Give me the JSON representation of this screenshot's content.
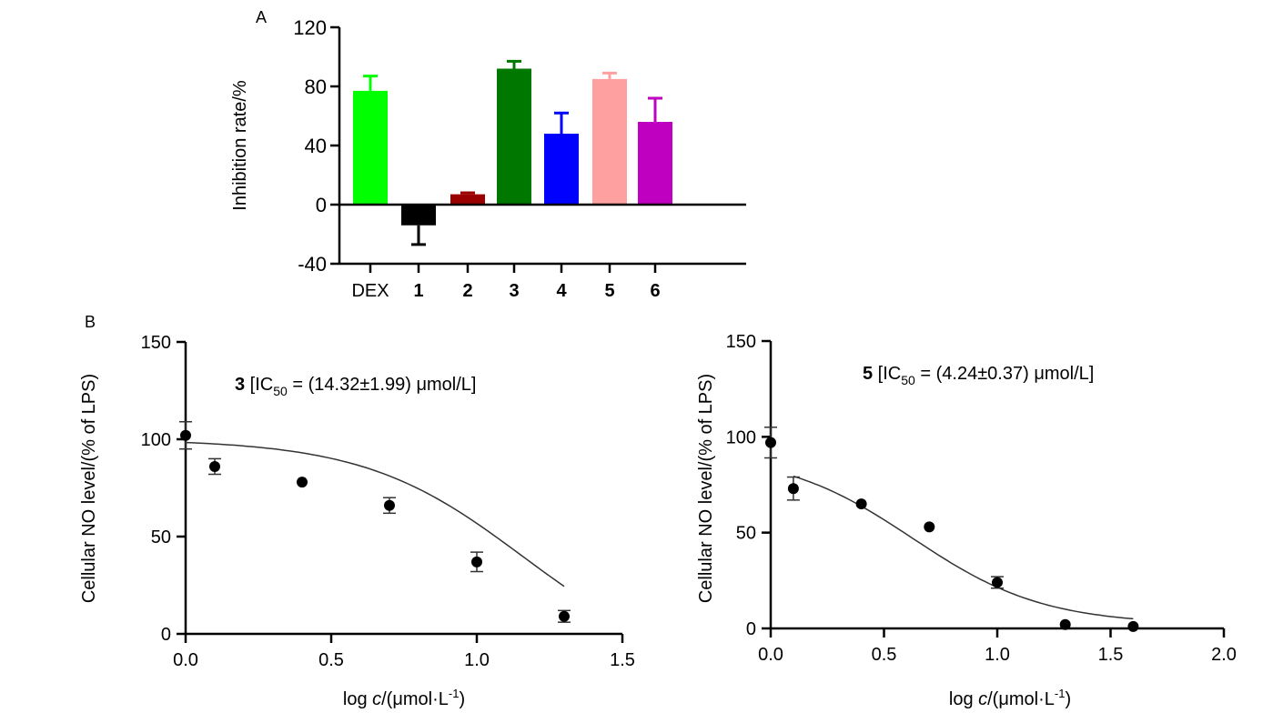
{
  "chart_data": [
    {
      "panel": "A",
      "type": "bar",
      "title": "",
      "xlabel": "",
      "ylabel": "Inhibition rate/%",
      "ylim": [
        -40,
        120
      ],
      "yticks": [
        "120",
        "80",
        "40",
        "0",
        "-40"
      ],
      "ytick_values": [
        120,
        80,
        40,
        0,
        -40
      ],
      "categories": [
        "DEX",
        "1",
        "2",
        "3",
        "4",
        "5",
        "6"
      ],
      "values": [
        77,
        -14,
        7,
        92,
        48,
        85,
        56
      ],
      "errors": [
        10,
        13,
        1,
        5,
        14,
        4,
        16
      ],
      "colors": [
        "#00ff00",
        "#000000",
        "#9b0000",
        "#007800",
        "#0000ff",
        "#ffa0a0",
        "#c000c0"
      ]
    },
    {
      "panel": "B-left",
      "type": "scatter",
      "annotation": {
        "compound": "3",
        "text_pre": " [IC",
        "sub": "50",
        "text_post": " = (14.32±1.99) μmol/L]"
      },
      "xlabel": {
        "pre": "log ",
        "italic": "c",
        "mid": "/(μmol·L",
        "sup": "-1",
        "post": ")"
      },
      "ylabel": "Cellular NO level/(% of LPS)",
      "xlim": [
        0,
        1.5
      ],
      "ylim": [
        0,
        150
      ],
      "xticks": [
        "0.0",
        "0.5",
        "1.0",
        "1.5"
      ],
      "xtick_values": [
        0,
        0.5,
        1.0,
        1.5
      ],
      "yticks": [
        "0",
        "50",
        "100",
        "150"
      ],
      "ytick_values": [
        0,
        50,
        100,
        150
      ],
      "points": [
        {
          "x": 0.0,
          "y": 102,
          "err": 7
        },
        {
          "x": 0.1,
          "y": 86,
          "err": 4
        },
        {
          "x": 0.4,
          "y": 78,
          "err": 0
        },
        {
          "x": 0.7,
          "y": 66,
          "err": 4
        },
        {
          "x": 1.0,
          "y": 37,
          "err": 5
        },
        {
          "x": 1.3,
          "y": 9,
          "err": 3
        }
      ],
      "fit": {
        "x_range": [
          0,
          1.3
        ],
        "top": 100,
        "bottom": -20,
        "log_ic50": 1.156,
        "hill": 1.6
      }
    },
    {
      "panel": "B-right",
      "type": "scatter",
      "annotation": {
        "compound": "5",
        "text_pre": " [IC",
        "sub": "50",
        "text_post": " = (4.24±0.37) μmol/L]"
      },
      "xlabel": {
        "pre": "log ",
        "italic": "c",
        "mid": "/(μmol·L",
        "sup": "-1",
        "post": ")"
      },
      "ylabel": "Cellular NO level/(% of LPS)",
      "xlim": [
        0,
        2.0
      ],
      "ylim": [
        0,
        150
      ],
      "xticks": [
        "0.0",
        "0.5",
        "1.0",
        "1.5",
        "2.0"
      ],
      "xtick_values": [
        0,
        0.5,
        1.0,
        1.5,
        2.0
      ],
      "yticks": [
        "0",
        "50",
        "100",
        "150"
      ],
      "ytick_values": [
        0,
        50,
        100,
        150
      ],
      "points": [
        {
          "x": 0.0,
          "y": 97,
          "err": 8
        },
        {
          "x": 0.1,
          "y": 73,
          "err": 6
        },
        {
          "x": 0.4,
          "y": 65,
          "err": 0
        },
        {
          "x": 0.7,
          "y": 53,
          "err": 0
        },
        {
          "x": 1.0,
          "y": 24,
          "err": 3
        },
        {
          "x": 1.3,
          "y": 2,
          "err": 0
        },
        {
          "x": 1.6,
          "y": 1,
          "err": 0
        }
      ],
      "fit": {
        "x_range": [
          0.1,
          1.6
        ],
        "top": 92,
        "bottom": 2,
        "log_ic50": 0.627,
        "hill": 1.5
      }
    }
  ],
  "labels": {
    "panel_a": "A",
    "panel_b": "B"
  }
}
